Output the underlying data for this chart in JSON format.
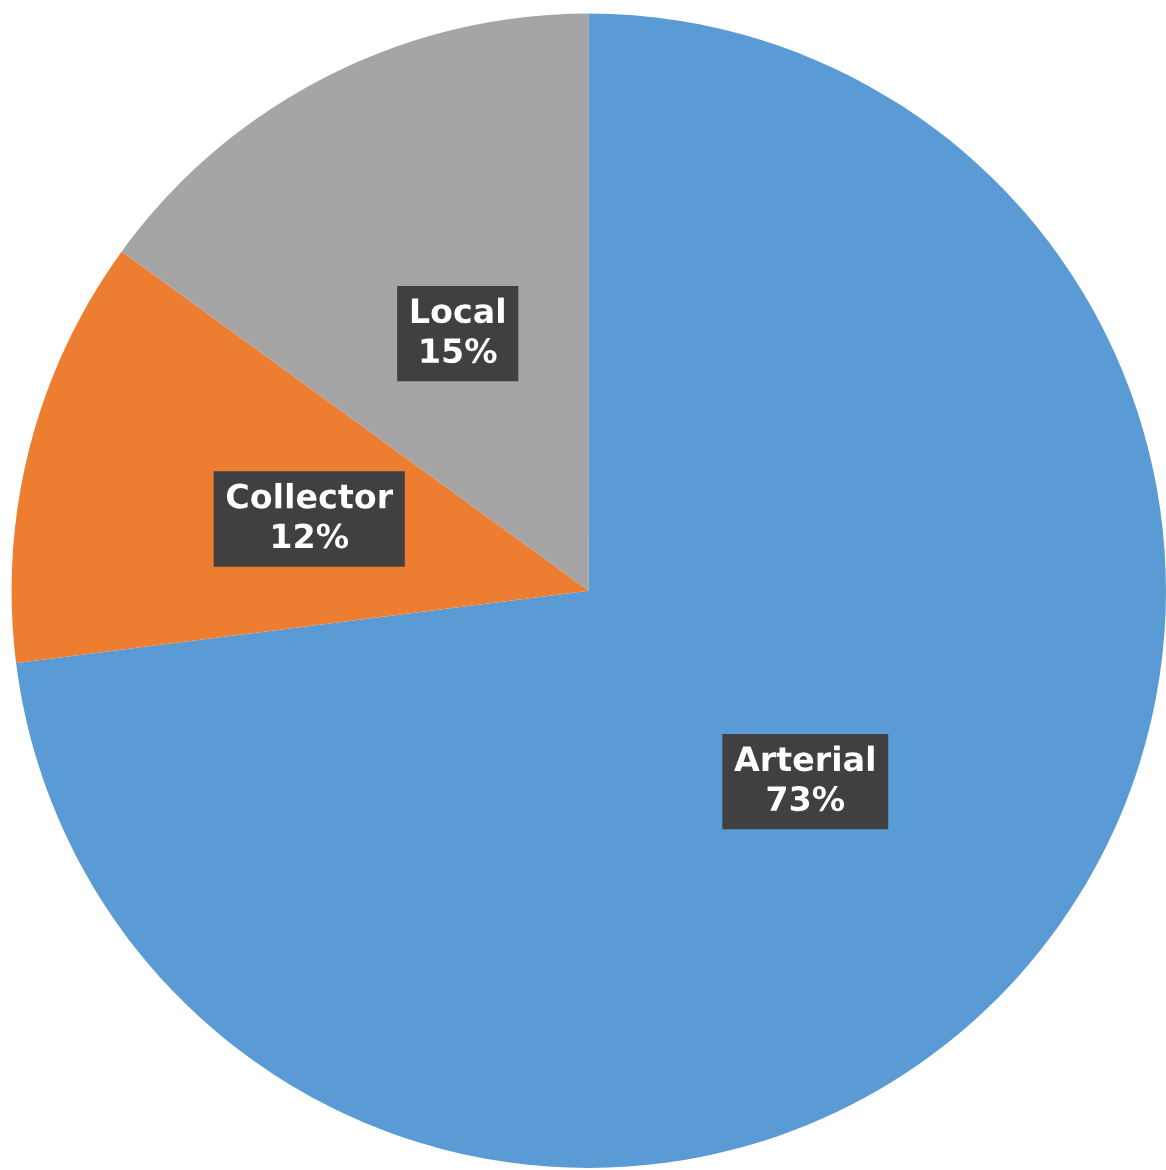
{
  "chart_data": {
    "type": "pie",
    "categories": [
      "Arterial",
      "Collector",
      "Local"
    ],
    "values": [
      73,
      12,
      15
    ],
    "value_labels": [
      "73%",
      "12%",
      "15%"
    ],
    "colors": [
      "#5b9bd5",
      "#ed7d31",
      "#a5a5a5"
    ],
    "legend": false
  }
}
